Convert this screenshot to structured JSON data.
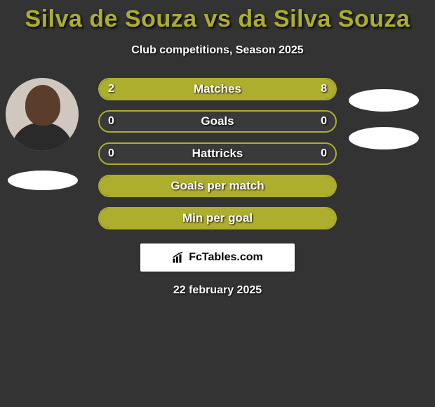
{
  "title": "Silva de Souza vs da Silva Souza",
  "subtitle": "Club competitions, Season 2025",
  "accent_color": "#adad2e",
  "bg_color": "#333333",
  "bar_bg": "#3a3a3a",
  "bar_border": "#adad2e",
  "fill_color": "#adad2e",
  "bars": [
    {
      "label": "Matches",
      "left": "2",
      "right": "8",
      "left_pct": 20,
      "right_pct": 80
    },
    {
      "label": "Goals",
      "left": "0",
      "right": "0",
      "left_pct": 0,
      "right_pct": 0
    },
    {
      "label": "Hattricks",
      "left": "0",
      "right": "0",
      "left_pct": 0,
      "right_pct": 0
    },
    {
      "label": "Goals per match",
      "left": "",
      "right": "",
      "left_pct": 100,
      "right_pct": 0
    },
    {
      "label": "Min per goal",
      "left": "",
      "right": "",
      "left_pct": 100,
      "right_pct": 0
    }
  ],
  "badge_text": "FcTables.com",
  "date": "22 february 2025"
}
